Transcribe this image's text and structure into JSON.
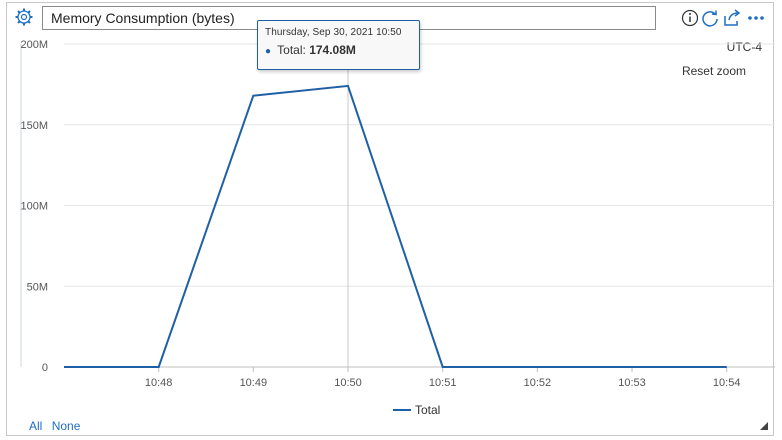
{
  "header": {
    "title_value": "Memory Consumption (bytes)"
  },
  "toolbar": {
    "icons": [
      "info-icon",
      "refresh-icon",
      "share-icon",
      "more-icon"
    ]
  },
  "timezone_label": "UTC-4",
  "reset_zoom_label": "Reset zoom",
  "tooltip": {
    "date": "Thursday, Sep 30, 2021 10:50",
    "series_label": "Total:",
    "value": "174.08M"
  },
  "legend": {
    "items": [
      "Total"
    ]
  },
  "links": {
    "all": "All",
    "none": "None"
  },
  "colors": {
    "series": "#1f5fa6",
    "grid": "#e6e6e6",
    "tooltip_border": "#1f5fa6",
    "link": "#1f6fc2"
  },
  "chart_data": {
    "type": "line",
    "title": "",
    "xlabel": "",
    "ylabel": "",
    "x": [
      "10:47",
      "10:48",
      "10:49",
      "10:50",
      "10:51",
      "10:52",
      "10:53",
      "10:54"
    ],
    "x_tick_labels": [
      "10:48",
      "10:49",
      "10:50",
      "10:51",
      "10:52",
      "10:53",
      "10:54"
    ],
    "y_tick_labels": [
      "0",
      "50M",
      "100M",
      "150M",
      "200M"
    ],
    "ylim": [
      0,
      200000000
    ],
    "series": [
      {
        "name": "Total",
        "values": [
          0,
          0,
          168000000,
          174080000,
          0,
          0,
          0,
          0
        ]
      }
    ],
    "grid": true,
    "legend_position": "bottom-center",
    "highlight_x": "10:50"
  }
}
